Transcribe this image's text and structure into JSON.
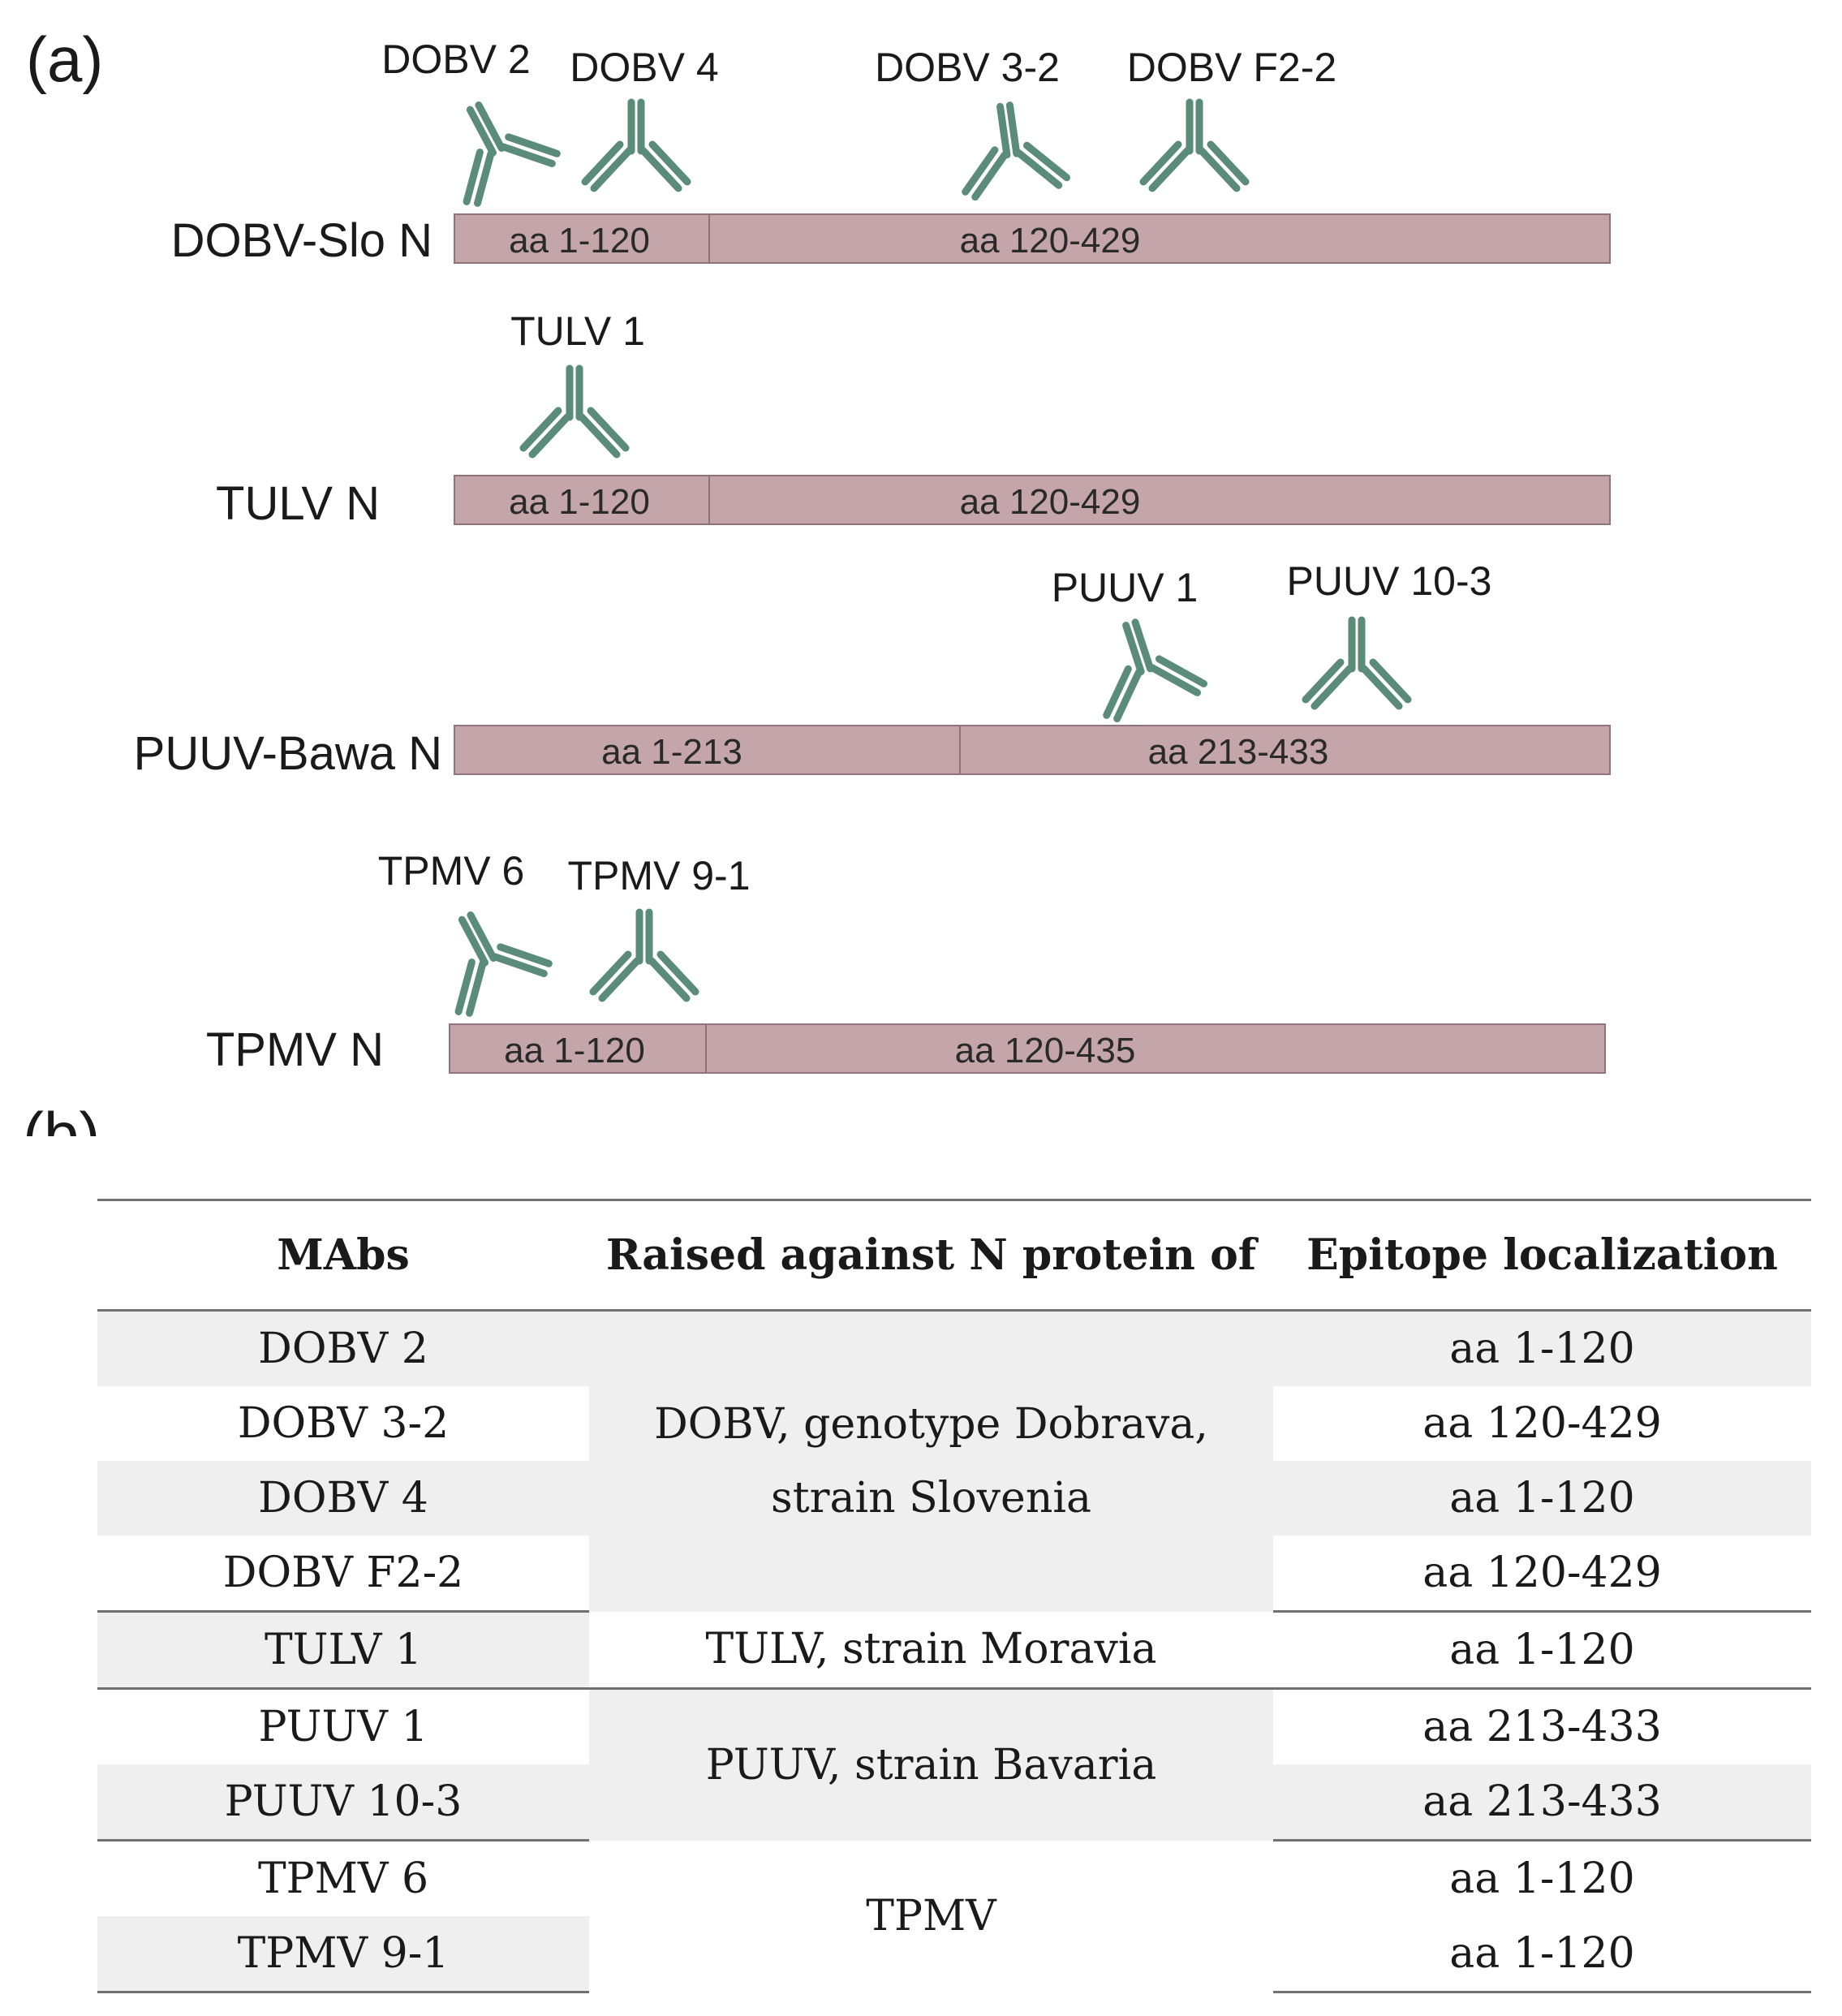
{
  "panel_a": {
    "letter": "(a)",
    "proteins": [
      {
        "label": "DOBV-Slo N",
        "segments": [
          "aa 1-120",
          "aa 120-429"
        ],
        "antibodies": [
          "DOBV 2",
          "DOBV 4",
          "DOBV 3-2",
          "DOBV F2-2"
        ]
      },
      {
        "label": "TULV N",
        "segments": [
          "aa 1-120",
          "aa 120-429"
        ],
        "antibodies": [
          "TULV 1"
        ]
      },
      {
        "label": "PUUV-Bawa N",
        "segments": [
          "aa 1-213",
          "aa 213-433"
        ],
        "antibodies": [
          "PUUV 1",
          "PUUV 10-3"
        ]
      },
      {
        "label": "TPMV N",
        "segments": [
          "aa 1-120",
          "aa 120-435"
        ],
        "antibodies": [
          "TPMV 6",
          "TPMV 9-1"
        ]
      }
    ],
    "colors": {
      "antibody": "#5b8c79",
      "bar_fill": "#c4a6aa",
      "bar_edge": "#8f7378"
    }
  },
  "panel_b": {
    "letter": "(b)",
    "headers": [
      "MAbs",
      "Raised against N protein of",
      "Epitope localization"
    ],
    "rows": [
      {
        "mab": "DOBV 2",
        "epitope": "aa 1-120"
      },
      {
        "mab": "DOBV 3-2",
        "epitope": "aa 120-429"
      },
      {
        "mab": "DOBV 4",
        "epitope": "aa 1-120"
      },
      {
        "mab": "DOBV F2-2",
        "epitope": "aa 120-429"
      },
      {
        "mab": "TULV 1",
        "epitope": "aa 1-120"
      },
      {
        "mab": "PUUV 1",
        "epitope": "aa 213-433"
      },
      {
        "mab": "PUUV 10-3",
        "epitope": "aa 213-433"
      },
      {
        "mab": "TPMV 6",
        "epitope": "aa 1-120"
      },
      {
        "mab": "TPMV 9-1",
        "epitope": "aa 1-120"
      }
    ],
    "raised_against": {
      "dobv_line1": "DOBV, genotype Dobrava,",
      "dobv_line2": "strain Slovenia",
      "tulv": "TULV, strain Moravia",
      "puuv": "PUUV, strain Bavaria",
      "tpmv": "TPMV"
    }
  }
}
